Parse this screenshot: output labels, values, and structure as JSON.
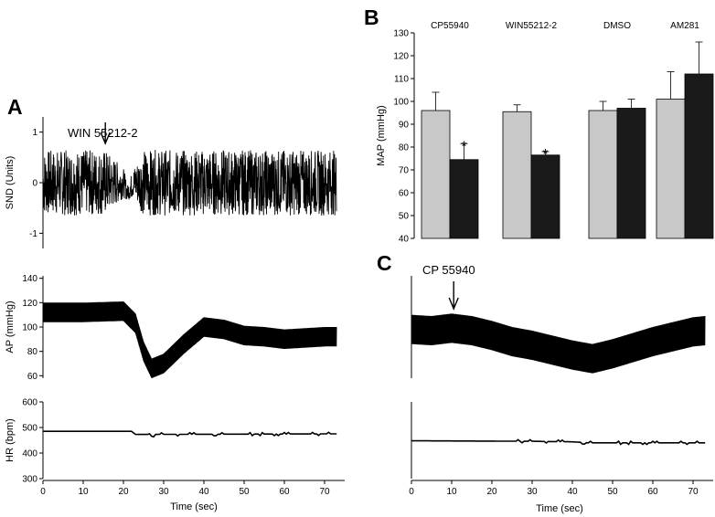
{
  "colors": {
    "control_bar": "#c8c8c8",
    "treatment_bar": "#1a1a1a",
    "trace": "#000000"
  },
  "panels": {
    "A": {
      "letter": "A",
      "annotation": "WIN 55212-2",
      "annotation_time": 15.5,
      "xlabel": "Time (sec)"
    },
    "B": {
      "letter": "B"
    },
    "C": {
      "letter": "C",
      "annotation": "CP 55940",
      "annotation_time": 10.5,
      "xlabel": "Time (sec)"
    }
  },
  "chart_data": [
    {
      "id": "A-SND",
      "type": "line",
      "ylabel": "SND (Units)",
      "xlim": [
        0,
        75
      ],
      "ylim": [
        -1.3,
        1.3
      ],
      "yticks": [
        -1,
        0,
        1
      ],
      "xticks": [],
      "series": [
        {
          "x": [
            0,
            15.5,
            20,
            21,
            22.5,
            25,
            73
          ],
          "y": [
            0,
            0,
            0,
            -0.2,
            0,
            0,
            0
          ],
          "noise_amplitude": [
            0.65,
            0.65,
            0.3,
            0.15,
            0.3,
            0.65,
            0.65
          ]
        }
      ]
    },
    {
      "id": "A-AP",
      "type": "line",
      "ylabel": "AP (mmHg)",
      "xlim": [
        0,
        75
      ],
      "ylim": [
        58,
        142
      ],
      "yticks": [
        60,
        80,
        100,
        120,
        140
      ],
      "xticks": [],
      "series": [
        {
          "x": [
            0,
            10,
            20,
            23,
            25,
            27,
            30,
            35,
            40,
            45,
            50,
            55,
            60,
            65,
            70,
            73
          ],
          "y": [
            112,
            112,
            113,
            103,
            80,
            66,
            70,
            86,
            100,
            98,
            93,
            92,
            90,
            91,
            92,
            92
          ],
          "pulse_amplitude": 8
        }
      ]
    },
    {
      "id": "A-HR",
      "type": "line",
      "ylabel": "HR (bpm)",
      "xlabel": "Time (sec)",
      "xlim": [
        0,
        75
      ],
      "ylim": [
        300,
        600
      ],
      "yticks": [
        300,
        400,
        500,
        600
      ],
      "xticks": [
        0,
        10,
        20,
        30,
        40,
        50,
        60,
        70
      ],
      "series": [
        {
          "x": [
            0,
            22,
            23,
            26,
            27,
            28,
            73
          ],
          "y": [
            485,
            485,
            473,
            473,
            466,
            473,
            475
          ]
        }
      ]
    },
    {
      "id": "B",
      "type": "bar",
      "ylabel": "MAP (mmHg)",
      "ylim": [
        40,
        130
      ],
      "yticks": [
        40,
        50,
        60,
        70,
        80,
        90,
        100,
        110,
        120,
        130
      ],
      "categories": [
        "CP55940",
        "WIN55212-2",
        "DMSO",
        "AM281"
      ],
      "series": [
        {
          "values": [
            96,
            95.5,
            96,
            101
          ],
          "errors": [
            8,
            3,
            4,
            12
          ]
        },
        {
          "values": [
            74.5,
            76.5,
            97,
            112
          ],
          "errors": [
            7,
            1.5,
            4,
            14
          ]
        }
      ],
      "significance": [
        "*",
        "*",
        "",
        ""
      ]
    },
    {
      "id": "C-AP",
      "type": "line",
      "xlim": [
        0,
        75
      ],
      "ylim": [
        58,
        142
      ],
      "xticks": [],
      "series": [
        {
          "x": [
            0,
            5,
            10,
            15,
            20,
            25,
            30,
            35,
            40,
            45,
            50,
            55,
            60,
            65,
            70,
            73
          ],
          "y": [
            98,
            97,
            99,
            97,
            93,
            88,
            85,
            81,
            77,
            74,
            78,
            83,
            88,
            92,
            96,
            97
          ],
          "pulse_amplitude": 12
        }
      ]
    },
    {
      "id": "C-HR",
      "type": "line",
      "xlabel": "Time (sec)",
      "xlim": [
        0,
        75
      ],
      "ylim": [
        300,
        600
      ],
      "xticks": [
        0,
        10,
        20,
        30,
        40,
        50,
        60,
        70
      ],
      "series": [
        {
          "x": [
            0,
            30,
            40,
            44,
            73
          ],
          "y": [
            448,
            446,
            444,
            440,
            440
          ]
        }
      ]
    }
  ]
}
